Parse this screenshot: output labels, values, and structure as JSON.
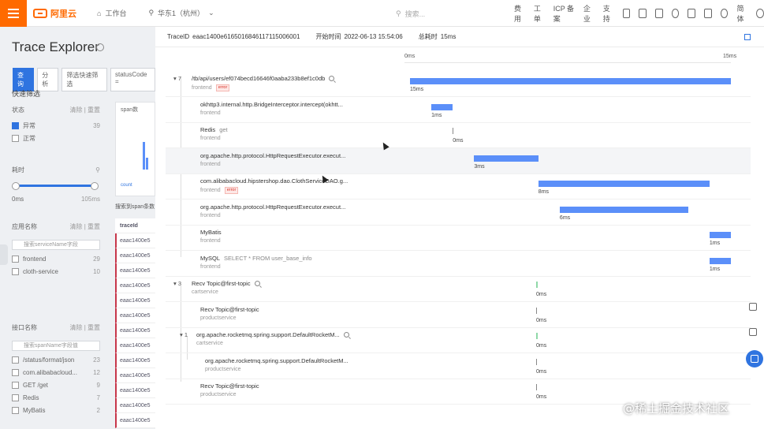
{
  "topbar": {
    "logo_text": "阿里云",
    "nav": [
      {
        "icon": "home-icon",
        "label": "工作台"
      },
      {
        "icon": "region-icon",
        "label": "华东1（杭州）"
      }
    ],
    "search_placeholder": "搜索...",
    "right_items": [
      "费用",
      "工单",
      "ICP 备案",
      "企业",
      "支持"
    ],
    "lang": "简体"
  },
  "left": {
    "title": "Trace Explorer",
    "tabs": [
      "查询",
      "分析",
      "筛选快速筛选",
      "statusCode ="
    ],
    "quick_filter_label": "快速筛选",
    "status_label": "状态",
    "status_actions": "清除 | 重置",
    "status_items": [
      {
        "label": "异常",
        "count": "39",
        "checked": true
      },
      {
        "label": "正常",
        "count": "",
        "checked": false
      }
    ],
    "duration_label": "耗时",
    "duration_min": "0ms",
    "duration_max": "105ms",
    "app_label": "应用名称",
    "app_actions": "清除 | 重置",
    "app_search_placeholder": "搜索serviceName字段",
    "app_items": [
      {
        "label": "frontend",
        "count": "29"
      },
      {
        "label": "cloth-service",
        "count": "10"
      }
    ],
    "iface_label": "接口名称",
    "iface_actions": "清除 | 重置",
    "iface_search_placeholder": "搜索spanName字段值",
    "iface_items": [
      {
        "label": "/status/format/json",
        "count": "23"
      },
      {
        "label": "com.alibabacloud...",
        "count": "12"
      },
      {
        "label": "GET /get",
        "count": "9"
      },
      {
        "label": "Redis",
        "count": "7"
      },
      {
        "label": "MyBatis",
        "count": "2"
      }
    ],
    "span_count_label": "span数",
    "span_legend": "count",
    "span_search_label": "搜索到span条数",
    "traceid_header": "traceId",
    "traceid_rows": [
      "eaac1400e5",
      "eaac1400e5",
      "eaac1400e5",
      "eaac1400e5",
      "eaac1400e5",
      "eaac1400e5",
      "eaac1400e5",
      "eaac1400e5",
      "eaac1400e5",
      "eaac1400e5",
      "eaac1400e5",
      "eaac1400e5",
      "eaac1400e5"
    ]
  },
  "panel": {
    "trace_id_label": "TraceID",
    "trace_id": "eaac1400e6165016846117115006001",
    "start_label": "开始时间",
    "start_time": "2022-06-13 15:54:06",
    "total_label": "总耗时",
    "total_duration": "15ms",
    "axis_start": "0ms",
    "axis_end": "15ms"
  },
  "spans": [
    {
      "toggle": "▾ 7",
      "name": "/tb/api/users/ef074becd16646f0aaba233b8ef1c0db",
      "extra": "",
      "service": "frontend",
      "error_badge": "error",
      "duration": "15ms",
      "bar_start": 0,
      "bar_ms": 15
    },
    {
      "toggle": "",
      "name": "okhttp3.internal.http.BridgeInterceptor.intercept(okhtt...",
      "extra": "",
      "service": "frontend",
      "error_badge": "",
      "duration": "1ms",
      "bar_start": 1,
      "bar_ms": 1
    },
    {
      "toggle": "",
      "name": "Redis",
      "extra": "get",
      "service": "frontend",
      "error_badge": "",
      "duration": "0ms",
      "bar_start": 2,
      "bar_ms": 0
    },
    {
      "toggle": "",
      "name": "org.apache.http.protocol.HttpRequestExecutor.execut...",
      "extra": "",
      "service": "frontend",
      "error_badge": "",
      "duration": "3ms",
      "bar_start": 3,
      "bar_ms": 3
    },
    {
      "toggle": "",
      "name": "com.alibabacloud.hipstershop.dao.ClothServiceDAO.g...",
      "extra": "",
      "service": "frontend",
      "error_badge": "error",
      "duration": "8ms",
      "bar_start": 6,
      "bar_ms": 8
    },
    {
      "toggle": "",
      "name": "org.apache.http.protocol.HttpRequestExecutor.execut...",
      "extra": "",
      "service": "frontend",
      "error_badge": "",
      "duration": "6ms",
      "bar_start": 7,
      "bar_ms": 6
    },
    {
      "toggle": "",
      "name": "MyBatis",
      "extra": "",
      "service": "frontend",
      "error_badge": "",
      "duration": "1ms",
      "bar_start": 14,
      "bar_ms": 1
    },
    {
      "toggle": "",
      "name": "MySQL",
      "extra": "SELECT * FROM user_base_info",
      "service": "frontend",
      "error_badge": "",
      "duration": "1ms",
      "bar_start": 14,
      "bar_ms": 1
    },
    {
      "toggle": "▾ 3",
      "name": "Recv Topic@first-topic",
      "extra": "",
      "service": "cartservice",
      "error_badge": "",
      "duration": "0ms",
      "bar_start": 6,
      "bar_ms": 0
    },
    {
      "toggle": "",
      "name": "Recv Topic@first-topic",
      "extra": "",
      "service": "productservice",
      "error_badge": "",
      "duration": "0ms",
      "bar_start": 6,
      "bar_ms": 0
    },
    {
      "toggle": "▾ 1",
      "name": "org.apache.rocketmq.spring.support.DefaultRocketM...",
      "extra": "",
      "service": "cartservice",
      "error_badge": "",
      "duration": "0ms",
      "bar_start": 6,
      "bar_ms": 0
    },
    {
      "toggle": "",
      "name": "org.apache.rocketmq.spring.support.DefaultRocketM...",
      "extra": "",
      "service": "productservice",
      "error_badge": "",
      "duration": "0ms",
      "bar_start": 6,
      "bar_ms": 0
    },
    {
      "toggle": "",
      "name": "Recv Topic@first-topic",
      "extra": "",
      "service": "productservice",
      "error_badge": "",
      "duration": "0ms",
      "bar_start": 6,
      "bar_ms": 0
    }
  ],
  "watermark": "@稀土掘金技术社区",
  "colors": {
    "accent": "#ff6a00",
    "bar": "#5b8ff9",
    "primary": "#2f74e0",
    "error": "#d93026"
  }
}
